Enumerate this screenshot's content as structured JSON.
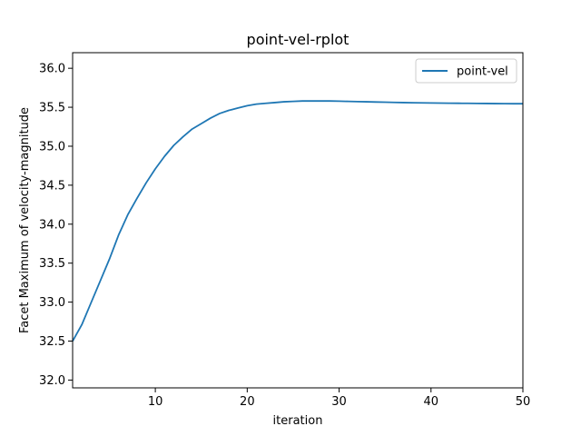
{
  "chart_data": {
    "type": "line",
    "title": "point-vel-rplot",
    "xlabel": "iteration",
    "ylabel": "Facet Maximum of velocity-magnitude",
    "xlim": [
      1,
      50
    ],
    "ylim": [
      31.9,
      36.2
    ],
    "xticks": [
      10,
      20,
      30,
      40,
      50
    ],
    "yticks": [
      32.0,
      32.5,
      33.0,
      33.5,
      34.0,
      34.5,
      35.0,
      35.5,
      36.0
    ],
    "grid": false,
    "legend_position": "top-right",
    "series": [
      {
        "name": "point-vel",
        "color": "#1f77b4",
        "x": [
          1,
          2,
          3,
          4,
          5,
          6,
          7,
          8,
          9,
          10,
          11,
          12,
          13,
          14,
          15,
          16,
          17,
          18,
          19,
          20,
          21,
          22,
          23,
          24,
          25,
          26,
          27,
          28,
          29,
          30,
          31,
          32,
          33,
          34,
          35,
          36,
          37,
          38,
          39,
          40,
          41,
          42,
          43,
          44,
          45,
          46,
          47,
          48,
          49,
          50
        ],
        "y": [
          32.5,
          32.71,
          32.99,
          33.27,
          33.55,
          33.86,
          34.12,
          34.33,
          34.53,
          34.71,
          34.87,
          35.01,
          35.12,
          35.22,
          35.29,
          35.36,
          35.42,
          35.46,
          35.49,
          35.52,
          35.54,
          35.55,
          35.56,
          35.57,
          35.575,
          35.58,
          35.58,
          35.58,
          35.58,
          35.578,
          35.575,
          35.572,
          35.57,
          35.567,
          35.565,
          35.562,
          35.56,
          35.558,
          35.556,
          35.555,
          35.553,
          35.552,
          35.551,
          35.55,
          35.549,
          35.548,
          35.547,
          35.546,
          35.545,
          35.545
        ]
      }
    ]
  }
}
